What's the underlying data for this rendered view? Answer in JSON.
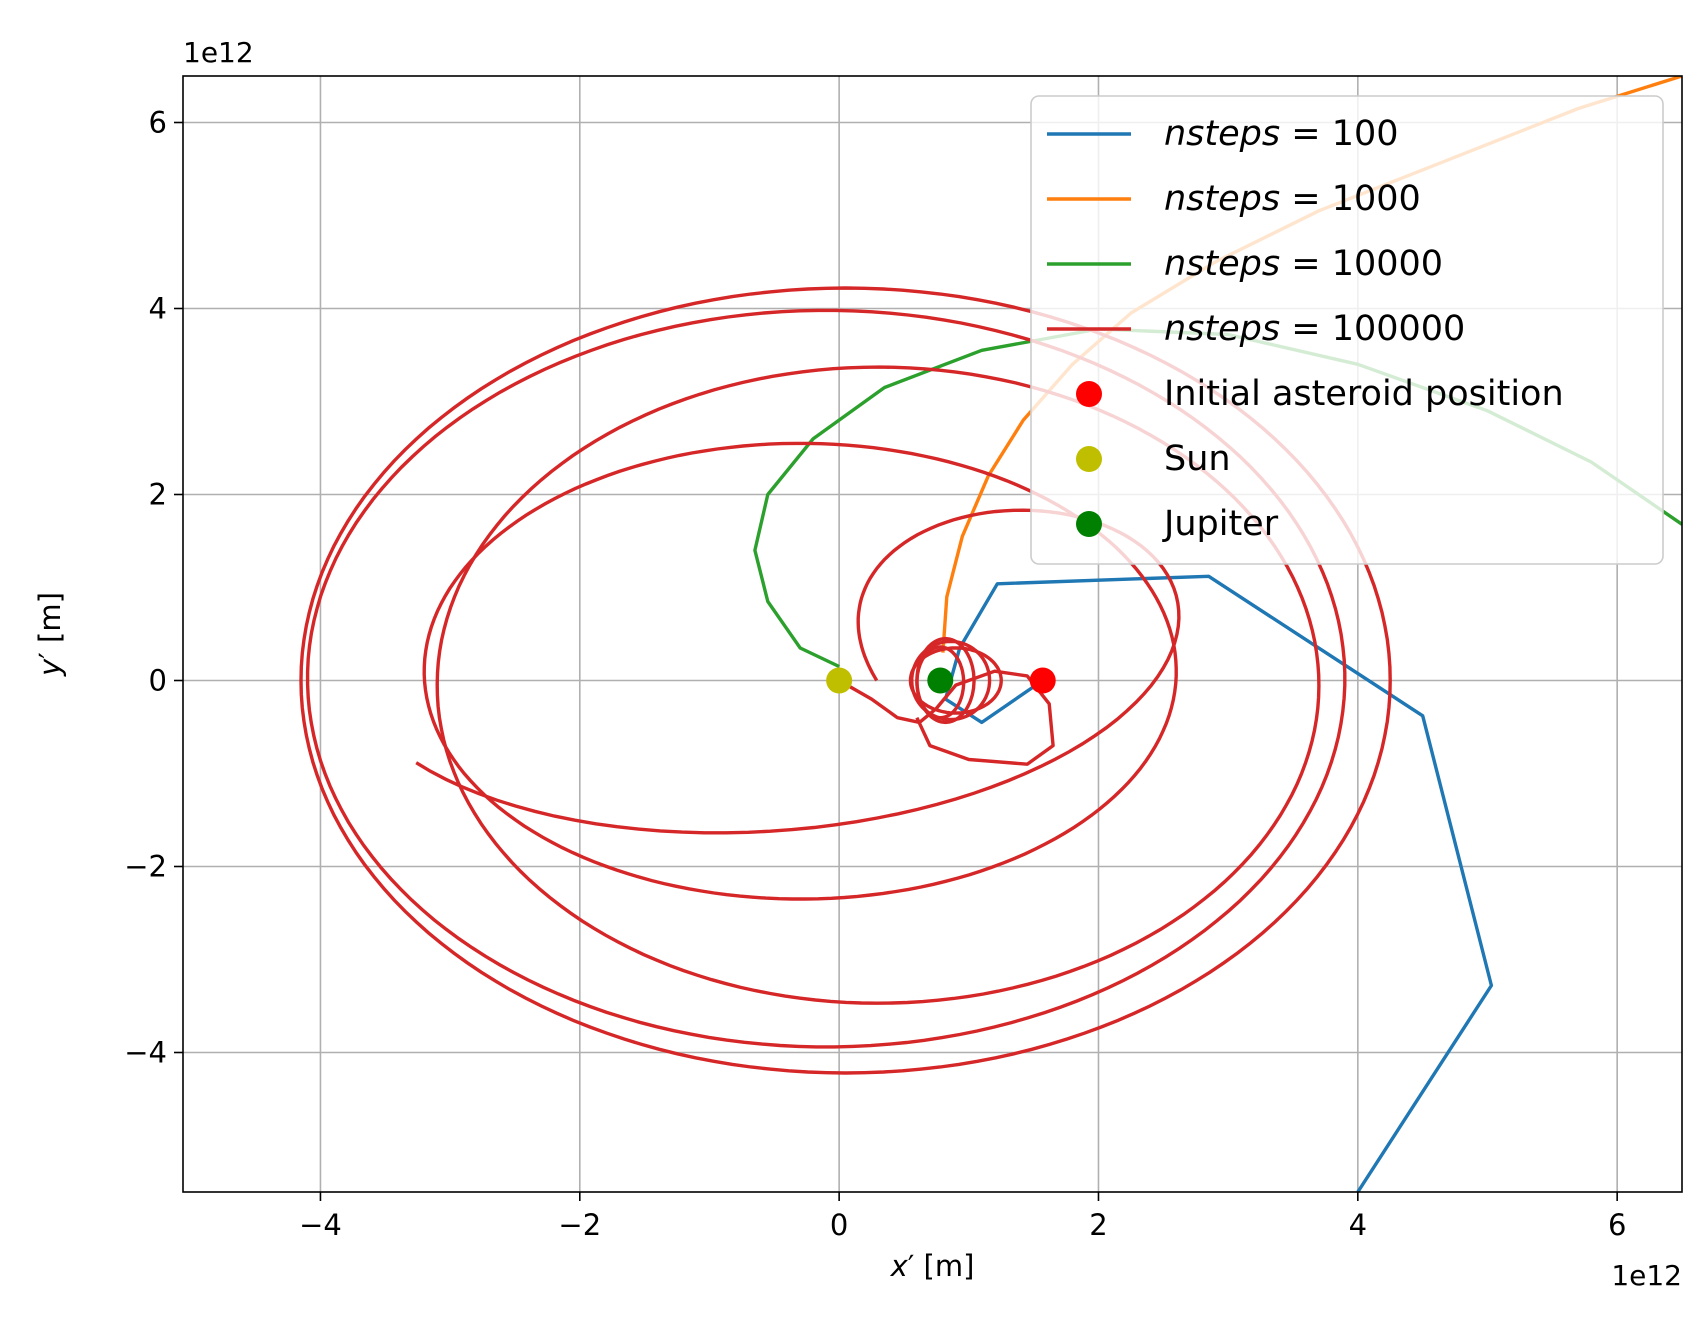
{
  "chart_data": {
    "type": "line",
    "xlabel_var": "x",
    "ylabel_var": "y",
    "xlabel_rest": " [m]",
    "ylabel_rest": " [m]",
    "prime": "′",
    "x_offset_text": "1e12",
    "y_offset_text": "1e12",
    "xlim": [
      -5.06,
      6.5
    ],
    "ylim": [
      -5.5,
      6.5
    ],
    "xticks": [
      -4,
      -2,
      0,
      2,
      4,
      6
    ],
    "yticks": [
      -4,
      -2,
      0,
      2,
      4,
      6
    ],
    "xtick_labels": [
      "−4",
      "−2",
      "0",
      "2",
      "4",
      "6"
    ],
    "ytick_labels": [
      "−4",
      "−2",
      "0",
      "2",
      "4",
      "6"
    ],
    "grid": true,
    "legend_position": "upper-right",
    "legend": [
      {
        "var": "nsteps",
        "rest": " = 100",
        "color": "#1f77b4",
        "kind": "line"
      },
      {
        "var": "nsteps",
        "rest": " = 1000",
        "color": "#ff7f0e",
        "kind": "line"
      },
      {
        "var": "nsteps",
        "rest": " = 10000",
        "color": "#2ca02c",
        "kind": "line"
      },
      {
        "var": "nsteps",
        "rest": " = 100000",
        "color": "#d62728",
        "kind": "line"
      },
      {
        "label": "Initial asteroid position",
        "color": "#ff0000",
        "kind": "marker"
      },
      {
        "label": "Sun",
        "color": "#bfbf00",
        "kind": "marker"
      },
      {
        "label": "Jupiter",
        "color": "#008000",
        "kind": "marker"
      }
    ],
    "series": [
      {
        "color": "#1f77b4",
        "points": [
          [
            1.57,
            0.0
          ],
          [
            1.1,
            -0.45
          ],
          [
            0.82,
            -0.2
          ],
          [
            0.93,
            0.35
          ],
          [
            1.22,
            1.04
          ],
          [
            2.85,
            1.12
          ],
          [
            4.5,
            -0.38
          ],
          [
            5.03,
            -3.28
          ],
          [
            4.0,
            -5.5
          ]
        ]
      },
      {
        "color": "#ff7f0e",
        "points": [
          [
            0.8,
            0.3
          ],
          [
            0.83,
            0.9
          ],
          [
            0.95,
            1.55
          ],
          [
            1.15,
            2.2
          ],
          [
            1.42,
            2.8
          ],
          [
            1.8,
            3.4
          ],
          [
            2.25,
            3.95
          ],
          [
            2.9,
            4.5
          ],
          [
            3.7,
            5.05
          ],
          [
            4.7,
            5.6
          ],
          [
            5.7,
            6.15
          ],
          [
            6.5,
            6.5
          ]
        ]
      },
      {
        "color": "#2ca02c",
        "points": [
          [
            0.0,
            0.15
          ],
          [
            -0.3,
            0.35
          ],
          [
            -0.55,
            0.85
          ],
          [
            -0.65,
            1.4
          ],
          [
            -0.55,
            2.0
          ],
          [
            -0.2,
            2.6
          ],
          [
            0.35,
            3.15
          ],
          [
            1.1,
            3.55
          ],
          [
            2.0,
            3.78
          ],
          [
            3.0,
            3.72
          ],
          [
            4.0,
            3.4
          ],
          [
            5.0,
            2.9
          ],
          [
            5.8,
            2.35
          ],
          [
            6.5,
            1.68
          ]
        ]
      }
    ],
    "spiral": {
      "color": "#d62728",
      "center_x_drift": 0.12,
      "arm_a": 1.72,
      "arm_b": 0.42,
      "arm_turns": 0.95,
      "inner_loops": [
        {
          "cx": 0.82,
          "cy": 0.0,
          "rx": 0.22,
          "ry": 0.45
        },
        {
          "cx": 0.86,
          "cy": 0.0,
          "rx": 0.3,
          "ry": 0.42
        },
        {
          "cx": 0.78,
          "cy": -0.02,
          "rx": 0.18,
          "ry": 0.38
        },
        {
          "cx": 0.9,
          "cy": 0.0,
          "rx": 0.35,
          "ry": 0.35
        }
      ],
      "outer_orbits": [
        {
          "cx": 0.05,
          "cy": 0.0,
          "rx": 4.2,
          "ry": 4.22
        },
        {
          "cx": -0.1,
          "cy": 0.02,
          "rx": 4.0,
          "ry": 3.96
        },
        {
          "cx": 0.3,
          "cy": -0.05,
          "rx": 3.4,
          "ry": 3.42
        },
        {
          "cx": -0.3,
          "cy": 0.1,
          "rx": 2.9,
          "ry": 2.45
        }
      ]
    },
    "markers": [
      {
        "x": 1.57,
        "y": 0.0,
        "color": "#ff0000"
      },
      {
        "x": 0.0,
        "y": 0.0,
        "color": "#bfbf00"
      },
      {
        "x": 0.78,
        "y": 0.0,
        "color": "#008000"
      }
    ]
  }
}
